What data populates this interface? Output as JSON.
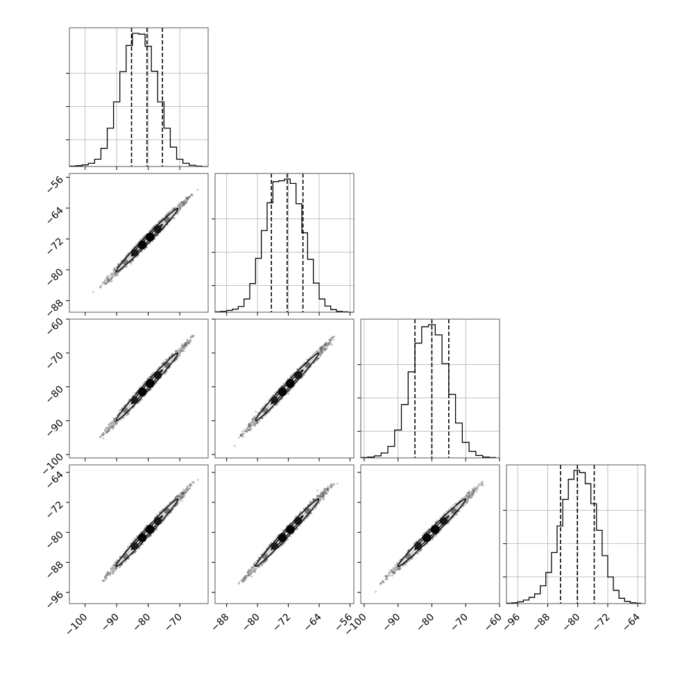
{
  "chart_data": {
    "type": "corner",
    "title": "",
    "grid": true,
    "params": [
      {
        "name": "",
        "range": [
          -105,
          -61
        ],
        "ticks": [
          -100,
          -90,
          -80,
          -70
        ],
        "tick_labels": [
          "−100",
          "−90",
          "−80",
          "−70"
        ],
        "quantiles": [
          -85.3,
          -80.4,
          -75.5
        ]
      },
      {
        "name": "",
        "range": [
          -91,
          -55
        ],
        "ticks": [
          -88,
          -80,
          -72,
          -64,
          -56
        ],
        "tick_labels": [
          "−88",
          "−80",
          "−72",
          "−64",
          "−56"
        ],
        "quantiles": [
          -76.4,
          -72.3,
          -68.2
        ]
      },
      {
        "name": "",
        "range": [
          -101,
          -60
        ],
        "ticks": [
          -100,
          -90,
          -80,
          -70,
          -60
        ],
        "tick_labels": [
          "−100",
          "−90",
          "−80",
          "−70",
          "−60"
        ],
        "quantiles": [
          -85.0,
          -80.0,
          -75.0
        ]
      },
      {
        "name": "",
        "range": [
          -99,
          -62
        ],
        "ticks": [
          -96,
          -88,
          -80,
          -72,
          -64
        ],
        "tick_labels": [
          "−96",
          "−88",
          "−80",
          "−72",
          "−64"
        ],
        "quantiles": [
          -84.6,
          -80.1,
          -75.6
        ]
      }
    ],
    "diag_ylabels_visible": false,
    "histograms": [
      {
        "param": 0,
        "bins": [
          -105,
          -103,
          -101,
          -99,
          -97,
          -95,
          -93,
          -91,
          -89,
          -87,
          -85,
          -83,
          -81,
          -79,
          -77,
          -75,
          -73,
          -71,
          -69,
          -67,
          -65,
          -63,
          -61
        ],
        "counts": [
          1,
          2,
          4,
          8,
          18,
          45,
          95,
          160,
          235,
          300,
          330,
          328,
          298,
          236,
          160,
          95,
          48,
          18,
          8,
          3,
          1,
          0
        ]
      },
      {
        "param": 1,
        "bins": [
          -91,
          -89.5,
          -88,
          -86.5,
          -85,
          -83.5,
          -82,
          -80.5,
          -79,
          -77.5,
          -76,
          -74.5,
          -73,
          -71.5,
          -70,
          -68.5,
          -67,
          -65.5,
          -64,
          -62.5,
          -61,
          -59.5,
          -58,
          -56.5,
          -55
        ],
        "counts": [
          1,
          2,
          4,
          7,
          13,
          30,
          65,
          122,
          185,
          248,
          296,
          298,
          302,
          292,
          246,
          180,
          120,
          66,
          30,
          14,
          6,
          2,
          1,
          0
        ]
      },
      {
        "param": 2,
        "bins": [
          -101,
          -99,
          -97,
          -95,
          -93,
          -91,
          -89,
          -87,
          -85,
          -83,
          -81,
          -79,
          -77,
          -75,
          -73,
          -71,
          -69,
          -67,
          -65,
          -63,
          -61
        ],
        "counts": [
          1,
          2,
          5,
          12,
          28,
          68,
          130,
          210,
          280,
          320,
          325,
          300,
          230,
          155,
          85,
          38,
          16,
          6,
          2,
          1
        ]
      },
      {
        "param": 3,
        "bins": [
          -99,
          -97.5,
          -96,
          -94.5,
          -93,
          -91.5,
          -90,
          -88.5,
          -87,
          -85.5,
          -84,
          -82.5,
          -81,
          -79.5,
          -78,
          -76.5,
          -75,
          -73.5,
          -72,
          -70.5,
          -69,
          -67.5,
          -66,
          -64.5,
          -63
        ],
        "counts": [
          1,
          2,
          4,
          8,
          14,
          22,
          40,
          70,
          115,
          175,
          235,
          280,
          300,
          295,
          270,
          225,
          165,
          108,
          60,
          30,
          12,
          5,
          2,
          1
        ]
      }
    ],
    "pairs": [
      {
        "x": 0,
        "y": 1,
        "center": [
          -80.4,
          -72.3
        ],
        "sigma": [
          4.9,
          4.1
        ],
        "rho": 0.99
      },
      {
        "x": 0,
        "y": 2,
        "center": [
          -80.4,
          -80.0
        ],
        "sigma": [
          4.9,
          5.0
        ],
        "rho": 0.99
      },
      {
        "x": 1,
        "y": 2,
        "center": [
          -72.3,
          -80.0
        ],
        "sigma": [
          4.1,
          5.0
        ],
        "rho": 0.99
      },
      {
        "x": 0,
        "y": 3,
        "center": [
          -80.4,
          -80.1
        ],
        "sigma": [
          4.9,
          4.5
        ],
        "rho": 0.99
      },
      {
        "x": 1,
        "y": 3,
        "center": [
          -72.3,
          -80.1
        ],
        "sigma": [
          4.1,
          4.5
        ],
        "rho": 0.99
      },
      {
        "x": 2,
        "y": 3,
        "center": [
          -80.0,
          -80.1
        ],
        "sigma": [
          5.0,
          4.5
        ],
        "rho": 0.99
      }
    ],
    "contour_levels_sigma": [
      1.0,
      2.0
    ],
    "density_bins_along_axis": [
      -2.2,
      -1.4,
      -0.8,
      -0.3,
      0.2,
      0.7,
      1.3,
      2.0
    ],
    "colors": {
      "line": "#000000",
      "grid": "#b0b0b0",
      "fill": "#d6d6d6",
      "points": "#555555",
      "axis": "#555555"
    }
  }
}
